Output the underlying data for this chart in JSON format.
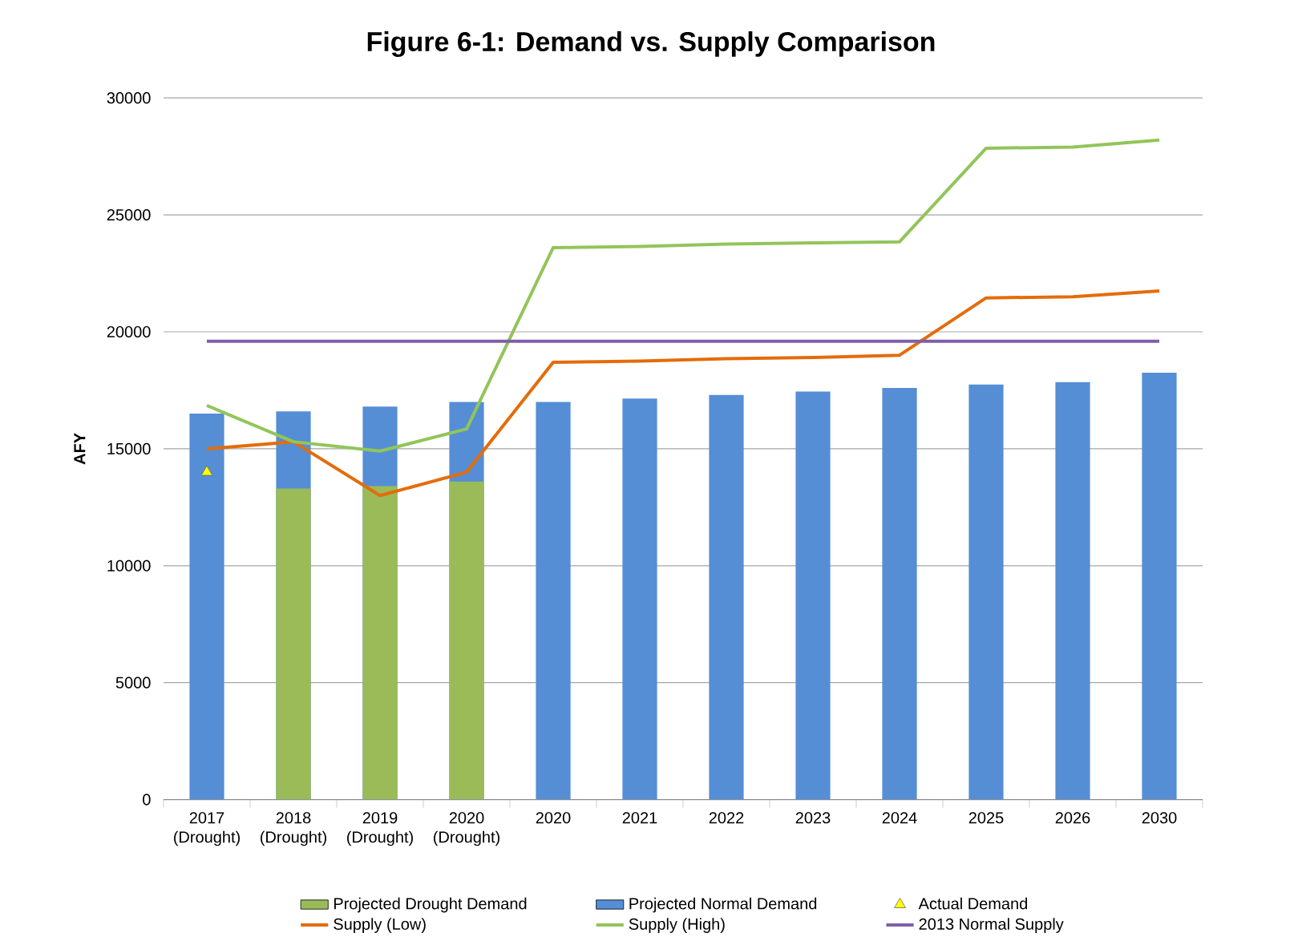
{
  "chart_data": {
    "type": "bar",
    "title": "Figure 6-1: Demand vs. Supply Comparison",
    "ylabel": "AFY",
    "categories": [
      "2017 (Drought)",
      "2018 (Drought)",
      "2019 (Drought)",
      "2020 (Drought)",
      "2020",
      "2021",
      "2022",
      "2023",
      "2024",
      "2025",
      "2026",
      "2030"
    ],
    "series": [
      {
        "name": "Projected Drought Demand",
        "color": "#9bbb59",
        "values": [
          null,
          13300,
          13400,
          13600,
          null,
          null,
          null,
          null,
          null,
          null,
          null,
          null
        ]
      },
      {
        "name": "Projected Normal Demand",
        "color": "#558ed5",
        "values": [
          16500,
          16600,
          16800,
          17000,
          17000,
          17150,
          17300,
          17450,
          17600,
          17750,
          17850,
          18250
        ]
      },
      {
        "name": "Actual Demand",
        "type": "scatter",
        "marker": "triangle",
        "color": "#ffff00",
        "values": [
          14000,
          null,
          null,
          null,
          null,
          null,
          null,
          null,
          null,
          null,
          null,
          null
        ]
      },
      {
        "name": "Supply (Low)",
        "type": "line",
        "color": "#e46c0a",
        "values": [
          15000,
          15300,
          13000,
          14000,
          18700,
          18750,
          18850,
          18900,
          19000,
          21450,
          21500,
          21750
        ]
      },
      {
        "name": "Supply (High)",
        "type": "line",
        "color": "#92c55a",
        "values": [
          16850,
          15300,
          14900,
          15850,
          23600,
          23650,
          23750,
          23800,
          23850,
          27850,
          27900,
          28200
        ]
      },
      {
        "name": "2013 Normal Supply",
        "type": "line",
        "color": "#7f5fa8",
        "values": [
          19600,
          19600,
          19600,
          19600,
          19600,
          19600,
          19600,
          19600,
          19600,
          19600,
          19600,
          19600
        ]
      }
    ],
    "ylim": [
      0,
      30000
    ],
    "yticks": [
      0,
      5000,
      10000,
      15000,
      20000,
      25000,
      30000
    ],
    "grid": "y",
    "legend": "bottom"
  }
}
